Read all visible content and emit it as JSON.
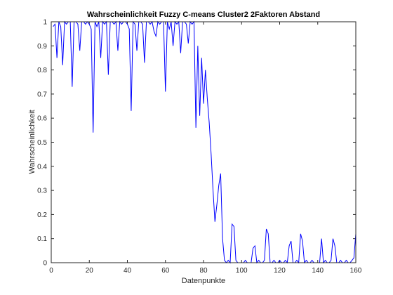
{
  "chart_data": {
    "type": "line",
    "title": "Wahrscheinlichkeit Fuzzy C-means Cluster2 2Faktoren Abstand",
    "xlabel": "Datenpunkte",
    "ylabel": "Wahrscheinlichkeit",
    "xlim": [
      0,
      160
    ],
    "ylim": [
      0,
      1
    ],
    "xticks": [
      0,
      20,
      40,
      60,
      80,
      100,
      120,
      140,
      160
    ],
    "yticks": [
      0,
      0.1,
      0.2,
      0.3,
      0.4,
      0.5,
      0.6,
      0.7,
      0.8,
      0.9,
      1
    ],
    "xtick_labels": [
      "0",
      "20",
      "40",
      "60",
      "80",
      "100",
      "120",
      "140",
      "160"
    ],
    "ytick_labels": [
      "0",
      "0.1",
      "0.2",
      "0.3",
      "0.4",
      "0.5",
      "0.6",
      "0.7",
      "0.8",
      "0.9",
      "1"
    ],
    "grid": false,
    "box": true,
    "line_color": "#0000ff",
    "axis_color": "#262626",
    "series": [
      {
        "x": [
          1,
          2,
          3,
          4,
          5,
          6,
          7,
          8,
          9,
          10,
          11,
          12,
          13,
          14,
          15,
          16,
          17,
          18,
          19,
          20,
          21,
          22,
          23,
          24,
          25,
          26,
          27,
          28,
          29,
          30,
          31,
          32,
          33,
          34,
          35,
          36,
          37,
          38,
          39,
          40,
          41,
          42,
          43,
          44,
          45,
          46,
          47,
          48,
          49,
          50,
          51,
          52,
          53,
          54,
          55,
          56,
          57,
          58,
          59,
          60,
          61,
          62,
          63,
          64,
          65,
          66,
          67,
          68,
          69,
          70,
          71,
          72,
          73,
          74,
          75,
          76,
          77,
          78,
          79,
          80,
          81,
          82,
          83,
          84,
          85,
          86,
          87,
          88,
          89,
          90,
          91,
          92,
          93,
          94,
          95,
          96,
          97,
          98,
          99,
          100,
          101,
          102,
          103,
          104,
          105,
          106,
          107,
          108,
          109,
          110,
          111,
          112,
          113,
          114,
          115,
          116,
          117,
          118,
          119,
          120,
          121,
          122,
          123,
          124,
          125,
          126,
          127,
          128,
          129,
          130,
          131,
          132,
          133,
          134,
          135,
          136,
          137,
          138,
          139,
          140,
          141,
          142,
          143,
          144,
          145,
          146,
          147,
          148,
          149,
          150,
          151,
          152,
          153,
          154,
          155,
          156,
          157,
          158,
          159,
          160
        ],
        "y": [
          0.98,
          0.99,
          0.85,
          1.0,
          0.98,
          0.82,
          1.0,
          0.99,
          1.0,
          1.0,
          0.73,
          1.0,
          1.0,
          0.99,
          0.88,
          1.0,
          1.0,
          0.99,
          1.0,
          0.99,
          0.97,
          0.54,
          1.0,
          0.98,
          1.0,
          0.85,
          1.0,
          0.99,
          1.0,
          0.78,
          1.0,
          1.0,
          0.99,
          1.0,
          0.88,
          1.0,
          0.99,
          1.0,
          1.0,
          0.99,
          0.97,
          0.63,
          1.0,
          0.99,
          0.88,
          1.0,
          1.0,
          0.99,
          0.83,
          1.0,
          1.0,
          0.99,
          1.0,
          0.96,
          0.94,
          1.0,
          0.99,
          1.0,
          1.0,
          0.71,
          1.0,
          0.97,
          1.0,
          0.9,
          1.0,
          0.99,
          1.0,
          0.87,
          1.0,
          1.0,
          0.99,
          0.91,
          1.0,
          0.99,
          1.0,
          0.56,
          0.9,
          0.61,
          0.85,
          0.66,
          0.8,
          0.68,
          0.58,
          0.45,
          0.3,
          0.17,
          0.24,
          0.32,
          0.37,
          0.1,
          0.01,
          0.0,
          0.01,
          0.0,
          0.16,
          0.15,
          0.01,
          0.0,
          0.0,
          0.0,
          0.0,
          0.01,
          0.0,
          0.0,
          0.0,
          0.06,
          0.07,
          0.0,
          0.01,
          0.0,
          0.0,
          0.01,
          0.14,
          0.12,
          0.0,
          0.0,
          0.01,
          0.0,
          0.0,
          0.01,
          0.0,
          0.0,
          0.01,
          0.0,
          0.07,
          0.09,
          0.0,
          0.0,
          0.01,
          0.0,
          0.12,
          0.09,
          0.0,
          0.01,
          0.0,
          0.0,
          0.01,
          0.0,
          0.0,
          0.0,
          0.0,
          0.1,
          0.0,
          0.01,
          0.0,
          0.0,
          0.01,
          0.1,
          0.07,
          0.0,
          0.0,
          0.01,
          0.0,
          0.0,
          0.01,
          0.0,
          0.0,
          0.01,
          0.02,
          0.12
        ]
      }
    ]
  }
}
